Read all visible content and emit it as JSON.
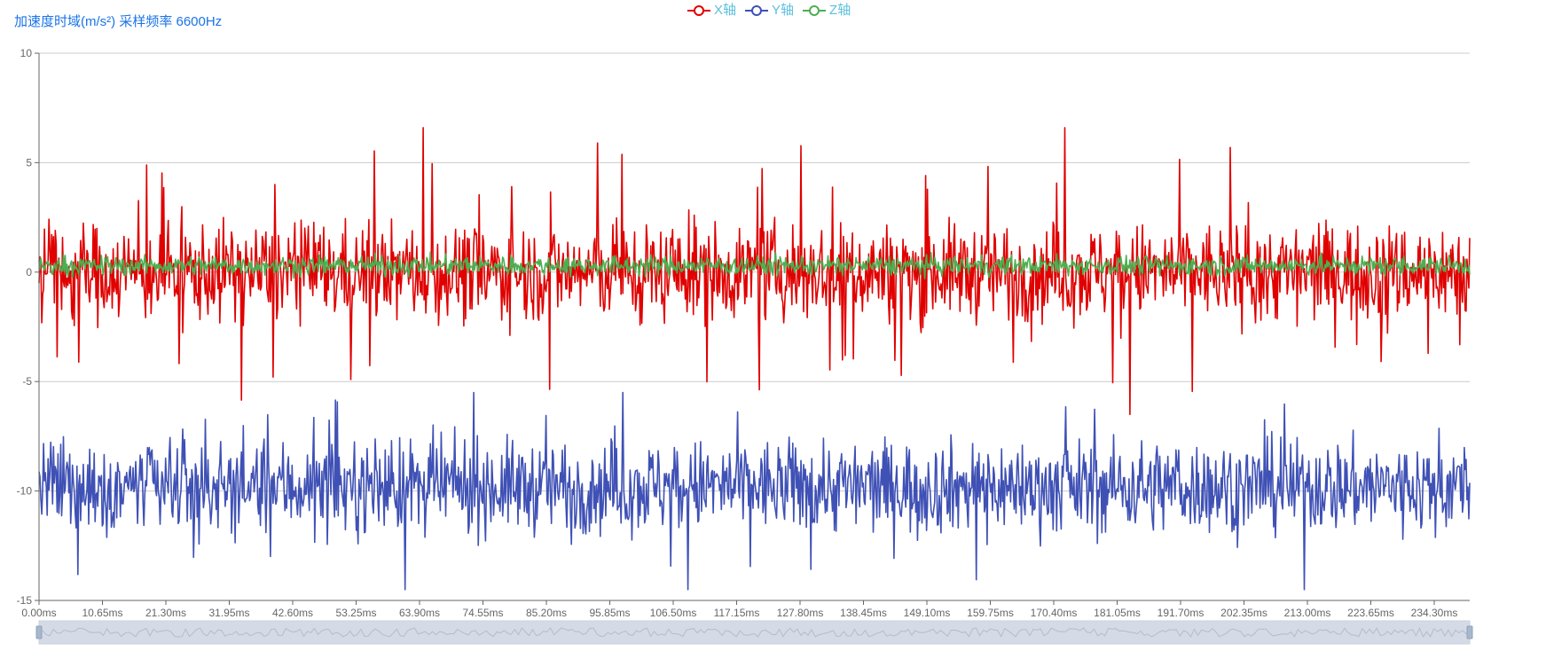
{
  "chart_data": {
    "type": "line",
    "title": "加速度时域(m/s²) 采样频率 6600Hz",
    "ylim": [
      -15,
      10
    ],
    "y_ticks": [
      10,
      5,
      0,
      -5,
      -10,
      -15
    ],
    "x_tick_labels": [
      "0.00ms",
      "10.65ms",
      "21.30ms",
      "31.95ms",
      "42.60ms",
      "53.25ms",
      "63.90ms",
      "74.55ms",
      "85.20ms",
      "95.85ms",
      "106.50ms",
      "117.15ms",
      "127.80ms",
      "138.45ms",
      "149.10ms",
      "159.75ms",
      "170.40ms",
      "181.05ms",
      "191.70ms",
      "202.35ms",
      "213.00ms",
      "223.65ms",
      "234.30ms"
    ],
    "x_range_ms": [
      0,
      240
    ],
    "sample_rate_hz": 6600,
    "grid": true,
    "legend_position": "top-center",
    "series": [
      {
        "name": "X轴",
        "color": "#e00000",
        "mean": 0.0,
        "typical_range": [
          -6.5,
          6.6
        ]
      },
      {
        "name": "Y轴",
        "color": "#3f51b5",
        "mean": -9.8,
        "typical_range": [
          -14.5,
          -5.5
        ]
      },
      {
        "name": "Z轴",
        "color": "#4caf50",
        "mean": 0.3,
        "typical_range": [
          -0.5,
          1.3
        ]
      }
    ],
    "datazoom": {
      "start_percent": 0,
      "end_percent": 100
    }
  },
  "colors": {
    "title": "#1a73e8",
    "legend_text": "#5bc0de",
    "axis": "#666666",
    "grid": "#cccccc",
    "slider_fill": "#d4dbe6"
  }
}
